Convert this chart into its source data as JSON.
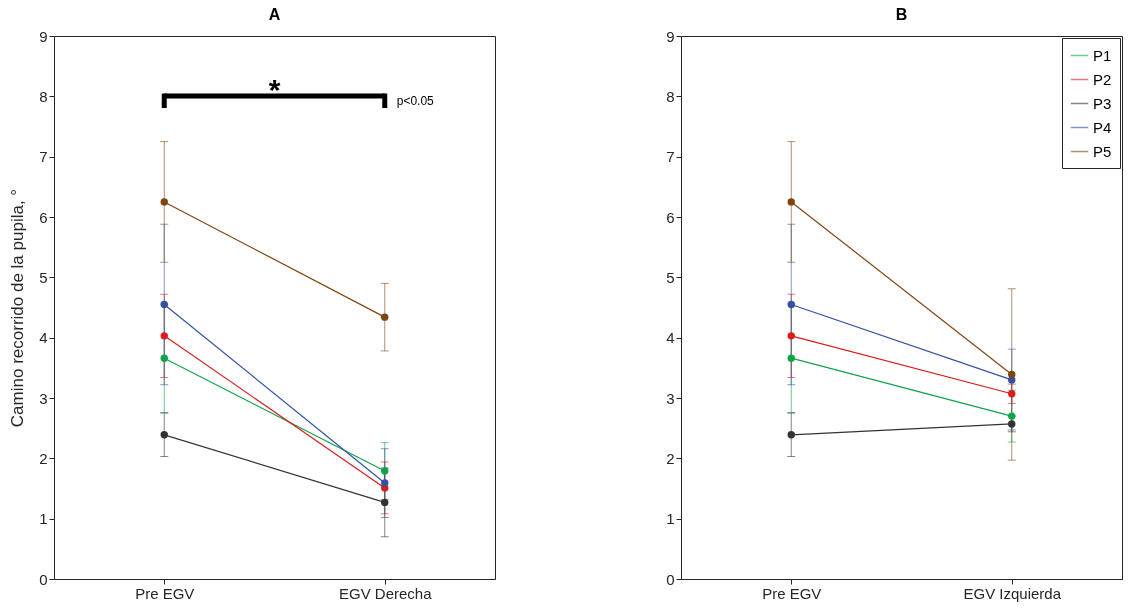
{
  "chart_data": [
    {
      "type": "line",
      "title": "A",
      "ylabel": "Camino recorrido de la pupila, °",
      "categories": [
        "Pre EGV",
        "EGV Derecha"
      ],
      "ylim": [
        0,
        9
      ],
      "yticks": [
        0,
        1,
        2,
        3,
        4,
        5,
        6,
        7,
        8,
        9
      ],
      "marker": "circle",
      "annotations": [
        "*",
        "p<0.05"
      ],
      "series": [
        {
          "color": "#0fa34a",
          "values": [
            3.66,
            1.79
          ],
          "errors": [
            0.9,
            0.47
          ]
        },
        {
          "color": "#d91c1c",
          "values": [
            4.03,
            1.51
          ],
          "errors": [
            0.69,
            0.43
          ]
        },
        {
          "color": "#333333",
          "values": [
            2.39,
            1.27
          ],
          "errors": [
            0.36,
            0.57
          ]
        },
        {
          "color": "#3350a3",
          "values": [
            4.55,
            1.59
          ],
          "errors": [
            1.33,
            0.57
          ]
        },
        {
          "color": "#7f4510",
          "values": [
            6.25,
            4.34
          ],
          "errors": [
            1.0,
            0.56
          ]
        }
      ]
    },
    {
      "type": "line",
      "title": "B",
      "categories": [
        "Pre EGV",
        "EGV Izquierda"
      ],
      "ylim": [
        0,
        9
      ],
      "yticks": [
        0,
        1,
        2,
        3,
        4,
        5,
        6,
        7,
        8,
        9
      ],
      "marker": "circle",
      "legend": "top right",
      "series": [
        {
          "name": "P1",
          "color": "#0fa34a",
          "values": [
            3.66,
            2.7
          ],
          "errors": [
            0.9,
            0.43
          ]
        },
        {
          "name": "P2",
          "color": "#d91c1c",
          "values": [
            4.03,
            3.07
          ],
          "errors": [
            0.69,
            0.16
          ]
        },
        {
          "name": "P3",
          "color": "#333333",
          "values": [
            2.39,
            2.57
          ],
          "errors": [
            0.36,
            0.13
          ]
        },
        {
          "name": "P4",
          "color": "#3350a3",
          "values": [
            4.55,
            3.3
          ],
          "errors": [
            1.33,
            [
              2.47,
              3.81
            ]
          ]
        },
        {
          "name": "P5",
          "color": "#7f4510",
          "values": [
            6.25,
            3.39
          ],
          "errors": [
            1.0,
            1.42
          ]
        }
      ]
    }
  ]
}
